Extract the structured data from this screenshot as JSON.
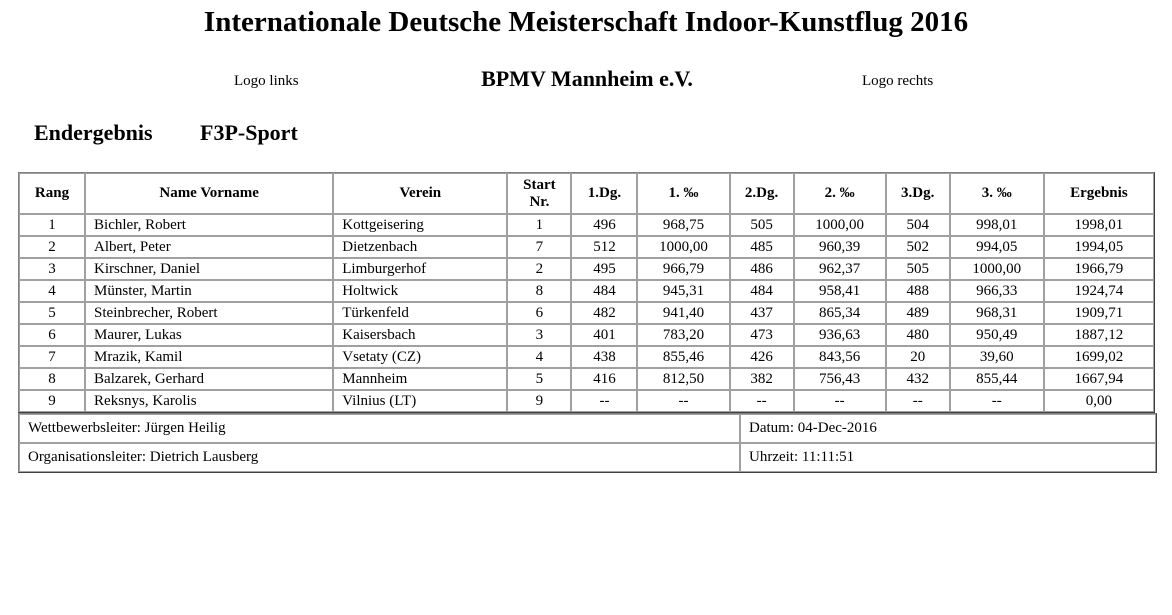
{
  "header": {
    "title": "Internationale Deutsche Meisterschaft Indoor-Kunstflug 2016",
    "logo_left": "Logo links",
    "club": "BPMV Mannheim e.V.",
    "logo_right": "Logo rechts",
    "result_label": "Endergebnis",
    "category": "F3P-Sport"
  },
  "table": {
    "headers": {
      "rang": "Rang",
      "name": "Name Vorname",
      "verein": "Verein",
      "start_line1": "Start",
      "start_line2": "Nr.",
      "dg1": "1.Dg.",
      "p1": "1. ‰",
      "dg2": "2.Dg.",
      "p2": "2. ‰",
      "dg3": "3.Dg.",
      "p3": "3. ‰",
      "ergebnis": "Ergebnis"
    },
    "rows": [
      {
        "rang": "1",
        "name": "Bichler, Robert",
        "verein": "Kottgeisering",
        "start": "1",
        "dg1": "496",
        "p1": "968,75",
        "dg2": "505",
        "p2": "1000,00",
        "dg3": "504",
        "p3": "998,01",
        "ergebnis": "1998,01"
      },
      {
        "rang": "2",
        "name": "Albert, Peter",
        "verein": "Dietzenbach",
        "start": "7",
        "dg1": "512",
        "p1": "1000,00",
        "dg2": "485",
        "p2": "960,39",
        "dg3": "502",
        "p3": "994,05",
        "ergebnis": "1994,05"
      },
      {
        "rang": "3",
        "name": "Kirschner, Daniel",
        "verein": "Limburgerhof",
        "start": "2",
        "dg1": "495",
        "p1": "966,79",
        "dg2": "486",
        "p2": "962,37",
        "dg3": "505",
        "p3": "1000,00",
        "ergebnis": "1966,79"
      },
      {
        "rang": "4",
        "name": "Münster, Martin",
        "verein": "Holtwick",
        "start": "8",
        "dg1": "484",
        "p1": "945,31",
        "dg2": "484",
        "p2": "958,41",
        "dg3": "488",
        "p3": "966,33",
        "ergebnis": "1924,74"
      },
      {
        "rang": "5",
        "name": "Steinbrecher, Robert",
        "verein": "Türkenfeld",
        "start": "6",
        "dg1": "482",
        "p1": "941,40",
        "dg2": "437",
        "p2": "865,34",
        "dg3": "489",
        "p3": "968,31",
        "ergebnis": "1909,71"
      },
      {
        "rang": "6",
        "name": "Maurer, Lukas",
        "verein": "Kaisersbach",
        "start": "3",
        "dg1": "401",
        "p1": "783,20",
        "dg2": "473",
        "p2": "936,63",
        "dg3": "480",
        "p3": "950,49",
        "ergebnis": "1887,12"
      },
      {
        "rang": "7",
        "name": "Mrazik, Kamil",
        "verein": "Vsetaty (CZ)",
        "start": "4",
        "dg1": "438",
        "p1": "855,46",
        "dg2": "426",
        "p2": "843,56",
        "dg3": "20",
        "p3": "39,60",
        "ergebnis": "1699,02"
      },
      {
        "rang": "8",
        "name": "Balzarek, Gerhard",
        "verein": "Mannheim",
        "start": "5",
        "dg1": "416",
        "p1": "812,50",
        "dg2": "382",
        "p2": "756,43",
        "dg3": "432",
        "p3": "855,44",
        "ergebnis": "1667,94"
      },
      {
        "rang": "9",
        "name": "Reksnys, Karolis",
        "verein": "Vilnius (LT)",
        "start": "9",
        "dg1": "--",
        "p1": "--",
        "dg2": "--",
        "p2": "--",
        "dg3": "--",
        "p3": "--",
        "ergebnis": "0,00"
      }
    ]
  },
  "footer": {
    "wettbewerbsleiter": "Wettbewerbsleiter: Jürgen Heilig",
    "datum": "Datum: 04-Dec-2016",
    "organisationsleiter": "Organisationsleiter: Dietrich Lausberg",
    "uhrzeit": "Uhrzeit: 11:11:51"
  }
}
